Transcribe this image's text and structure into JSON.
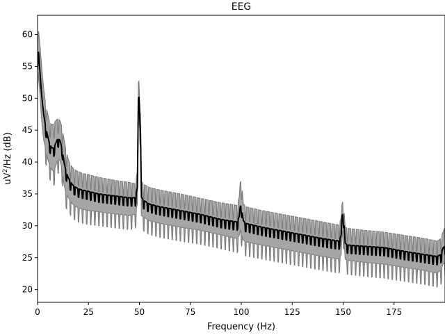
{
  "chart_data": {
    "type": "line",
    "title": "EEG",
    "xlabel": "Frequency (Hz)",
    "ylabel_parts": {
      "prefix": "uV",
      "superscript": "2",
      "suffix": "/Hz (dB)"
    },
    "xlim": [
      0,
      200
    ],
    "ylim": [
      18,
      63
    ],
    "x_ticks": [
      0,
      25,
      50,
      75,
      100,
      125,
      150,
      175
    ],
    "y_ticks": [
      20,
      25,
      30,
      35,
      40,
      45,
      50,
      55,
      60
    ],
    "grid": false,
    "legend": "none",
    "series": [
      {
        "role": "mean",
        "color": "#000000",
        "x": [
          0,
          0.5,
          1,
          2,
          3,
          4,
          5,
          6,
          7,
          8,
          9,
          10,
          11,
          12,
          13,
          14,
          15,
          16,
          17,
          18,
          20,
          22,
          25,
          30,
          35,
          40,
          45,
          48,
          49,
          49.5,
          50,
          50.5,
          51,
          52,
          55,
          60,
          70,
          80,
          90,
          98,
          99,
          99.5,
          100,
          100.5,
          101,
          102,
          110,
          120,
          130,
          140,
          148,
          149,
          149.5,
          150,
          150.5,
          151,
          152,
          160,
          170,
          180,
          190,
          196,
          198,
          199,
          200
        ],
        "y": [
          54.5,
          57.2,
          55.0,
          50.5,
          47.5,
          45.5,
          44.0,
          42.8,
          42.2,
          42.2,
          43.0,
          43.7,
          43.4,
          42.2,
          40.0,
          38.5,
          37.6,
          37.0,
          36.5,
          36.2,
          35.8,
          35.6,
          35.4,
          35.0,
          34.8,
          34.6,
          34.4,
          34.4,
          36.0,
          50.0,
          50.3,
          45.0,
          34.5,
          34.0,
          33.4,
          33.0,
          32.4,
          31.8,
          31.0,
          30.6,
          31.5,
          33.0,
          33.2,
          32.0,
          30.8,
          30.4,
          29.8,
          29.2,
          28.6,
          28.0,
          27.6,
          28.5,
          31.5,
          32.0,
          30.0,
          27.3,
          27.0,
          26.8,
          26.6,
          26.0,
          25.5,
          25.2,
          25.5,
          26.5,
          26.8
        ]
      },
      {
        "role": "std-band-upper",
        "color": "#808080",
        "x": [
          0,
          0.5,
          1,
          2,
          3,
          4,
          5,
          6,
          7,
          8,
          9,
          10,
          11,
          12,
          13,
          14,
          15,
          16,
          17,
          18,
          20,
          22,
          25,
          30,
          35,
          40,
          45,
          48,
          49,
          49.5,
          50,
          50.5,
          51,
          52,
          55,
          60,
          70,
          80,
          90,
          98,
          99,
          99.5,
          100,
          100.5,
          101,
          102,
          110,
          120,
          130,
          140,
          148,
          149,
          149.5,
          150,
          150.5,
          151,
          152,
          160,
          170,
          180,
          190,
          196,
          198,
          199,
          200
        ],
        "y": [
          58.0,
          60.5,
          59.0,
          55.0,
          51.5,
          49.0,
          47.5,
          46.2,
          45.8,
          46.0,
          46.5,
          46.8,
          46.5,
          45.5,
          43.5,
          41.8,
          40.5,
          39.6,
          39.2,
          38.8,
          38.5,
          38.2,
          38.0,
          37.6,
          37.3,
          37.0,
          36.8,
          36.6,
          38.5,
          52.5,
          52.8,
          47.5,
          37.0,
          36.5,
          36.0,
          35.6,
          35.0,
          34.3,
          33.6,
          33.2,
          34.5,
          36.8,
          37.0,
          35.5,
          33.5,
          33.0,
          32.4,
          31.8,
          31.2,
          30.6,
          30.1,
          31.2,
          33.5,
          34.0,
          32.0,
          29.8,
          29.6,
          29.3,
          29.0,
          28.5,
          28.0,
          27.6,
          28.0,
          29.0,
          29.8
        ]
      },
      {
        "role": "std-band-lower",
        "color": "#808080",
        "x": [
          0,
          0.5,
          1,
          2,
          3,
          4,
          5,
          6,
          7,
          8,
          9,
          10,
          11,
          12,
          13,
          14,
          15,
          16,
          17,
          18,
          20,
          22,
          25,
          30,
          35,
          40,
          45,
          48,
          49,
          49.5,
          50,
          50.5,
          51,
          52,
          55,
          60,
          70,
          80,
          90,
          98,
          99,
          99.5,
          100,
          100.5,
          101,
          102,
          110,
          120,
          130,
          140,
          148,
          149,
          149.5,
          150,
          150.5,
          151,
          152,
          160,
          170,
          180,
          190,
          196,
          198,
          199,
          200
        ],
        "y": [
          51.0,
          54.0,
          51.5,
          46.5,
          43.5,
          42.0,
          40.5,
          39.5,
          38.8,
          38.5,
          39.5,
          40.5,
          40.3,
          39.0,
          36.5,
          35.0,
          34.5,
          34.0,
          33.5,
          33.2,
          32.8,
          32.6,
          32.4,
          32.2,
          32.0,
          31.8,
          31.6,
          31.8,
          33.5,
          47.5,
          47.8,
          42.5,
          31.6,
          31.4,
          30.8,
          30.4,
          29.8,
          29.3,
          28.6,
          28.0,
          28.5,
          29.2,
          29.4,
          28.5,
          27.8,
          27.5,
          27.0,
          26.4,
          25.8,
          25.2,
          24.8,
          25.5,
          29.0,
          29.5,
          27.5,
          24.8,
          24.6,
          24.3,
          24.0,
          23.5,
          23.0,
          22.6,
          23.0,
          24.0,
          24.3
        ]
      }
    ],
    "comb_ripple": {
      "step_hz": 2,
      "mean_depth_db": 1.3,
      "band_depth_db": 2.2
    }
  }
}
